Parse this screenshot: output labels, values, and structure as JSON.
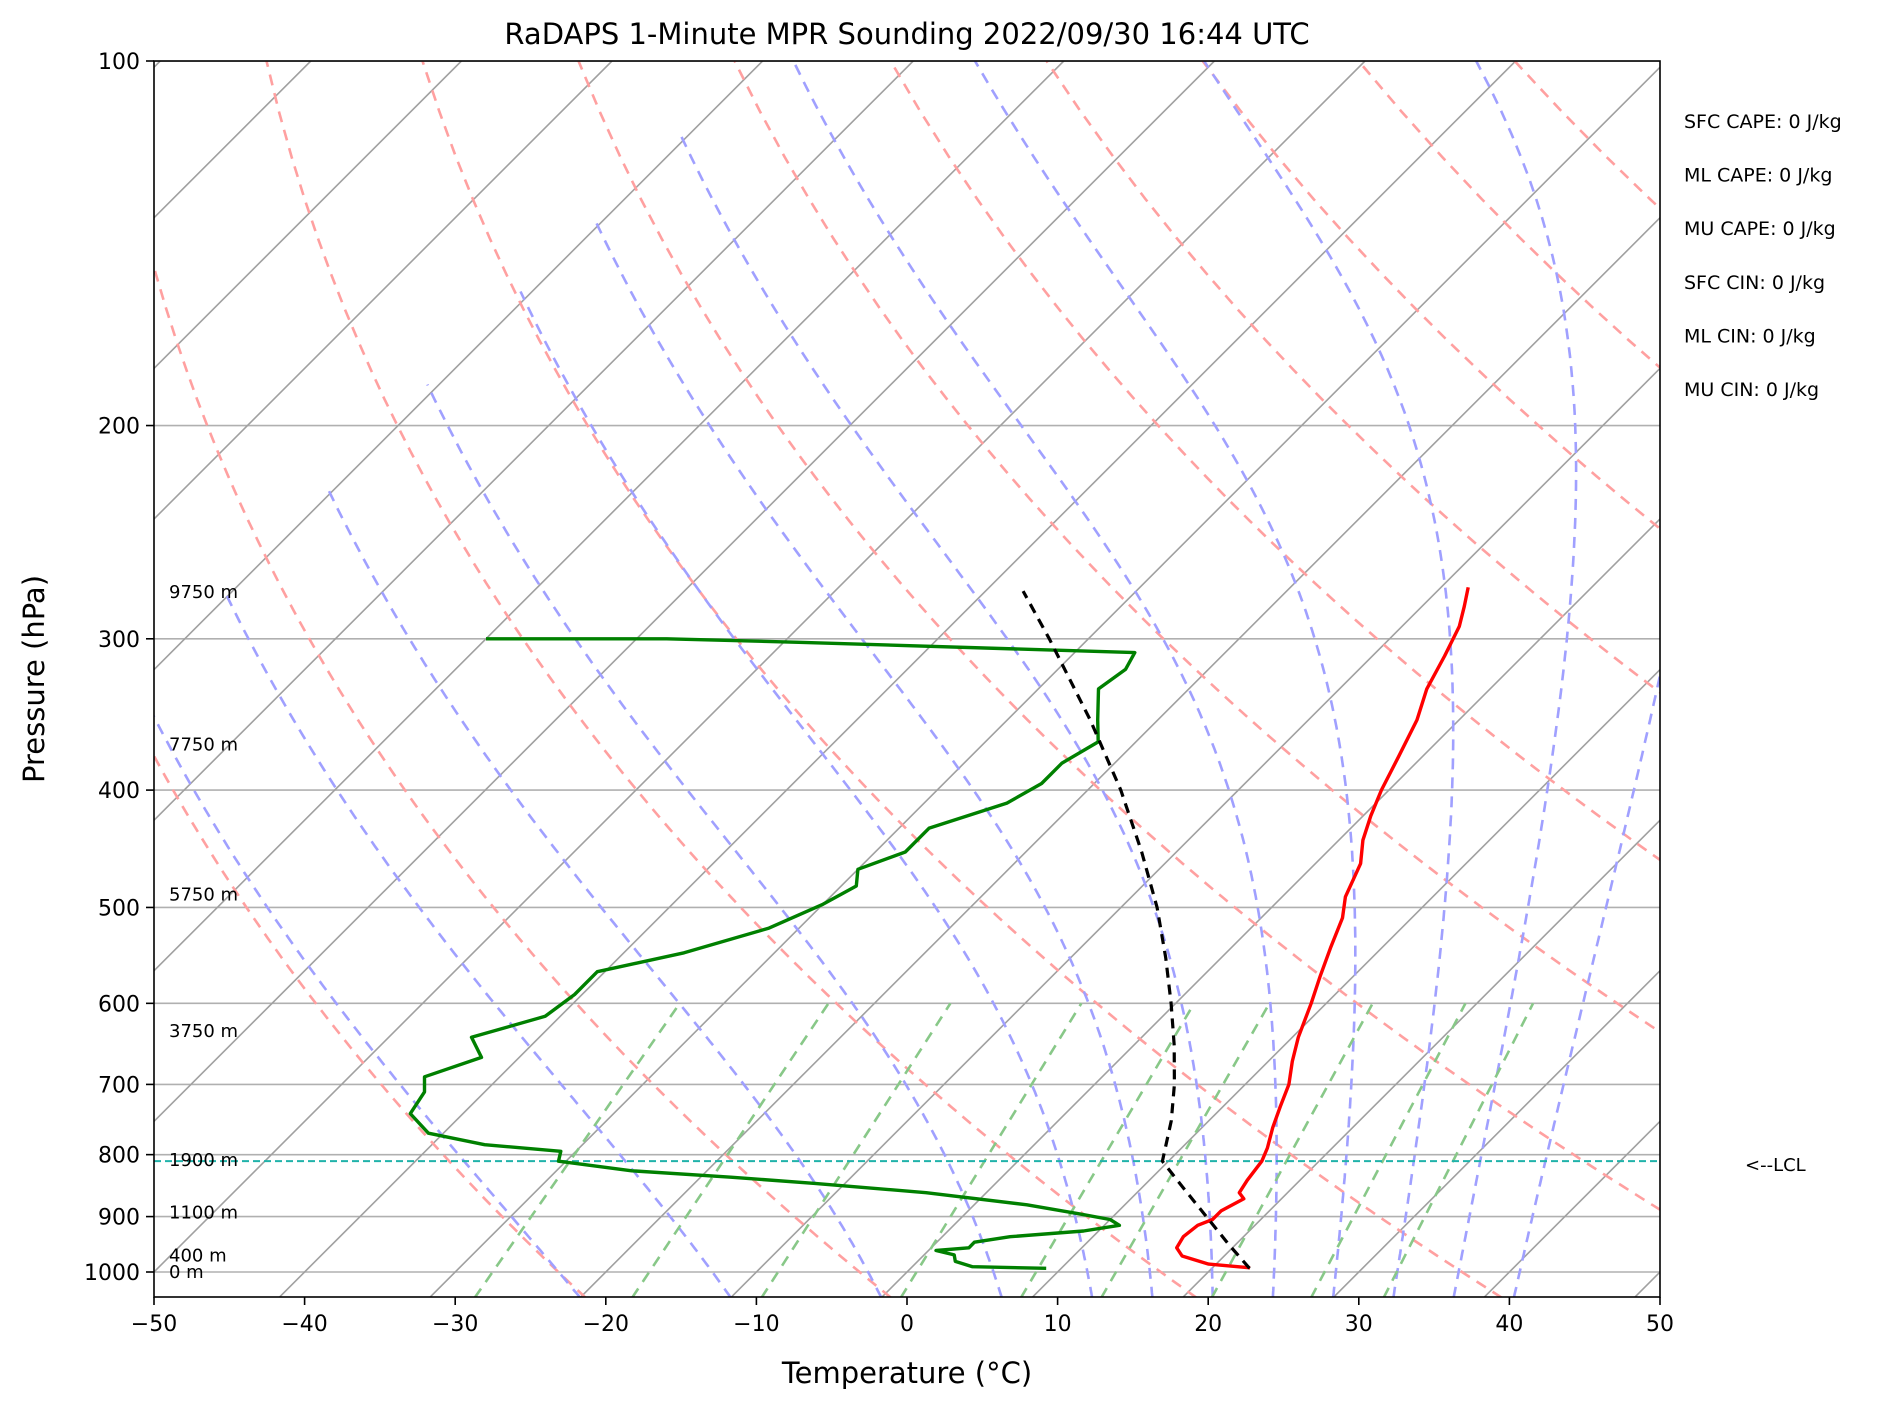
{
  "chart_data": {
    "type": "line",
    "title": "RaDAPS 1-Minute MPR Sounding 2022/09/30 16:44 UTC",
    "xlabel": "Temperature (°C)",
    "ylabel": "Pressure (hPa)",
    "xlim": [
      -50,
      50
    ],
    "ylim": [
      1050,
      100
    ],
    "y_scale": "log",
    "x_ticks": [
      -50,
      -40,
      -30,
      -20,
      -10,
      0,
      10,
      20,
      30,
      40,
      50
    ],
    "x_tick_labels": [
      "−50",
      "−40",
      "−30",
      "−20",
      "−10",
      "0",
      "10",
      "20",
      "30",
      "40",
      "50"
    ],
    "y_ticks": [
      100,
      200,
      300,
      400,
      500,
      600,
      700,
      800,
      900,
      1000
    ],
    "y_tick_labels": [
      "100",
      "200",
      "300",
      "400",
      "500",
      "600",
      "700",
      "800",
      "900",
      "1000"
    ],
    "grid": true,
    "skew": "skew-T",
    "series": [
      {
        "role": "temperature",
        "color": "#ff0000",
        "points": [
          [
            992,
            22.5
          ],
          [
            985,
            19.5
          ],
          [
            970,
            17.2
          ],
          [
            955,
            16.3
          ],
          [
            935,
            16.0
          ],
          [
            915,
            16.2
          ],
          [
            905,
            16.8
          ],
          [
            890,
            16.8
          ],
          [
            870,
            17.5
          ],
          [
            860,
            16.8
          ],
          [
            840,
            16.5
          ],
          [
            810,
            16.2
          ],
          [
            790,
            15.7
          ],
          [
            760,
            14.7
          ],
          [
            730,
            13.8
          ],
          [
            700,
            12.9
          ],
          [
            670,
            11.6
          ],
          [
            640,
            10.4
          ],
          [
            600,
            9.0
          ],
          [
            570,
            7.8
          ],
          [
            540,
            6.6
          ],
          [
            510,
            5.4
          ],
          [
            490,
            4.2
          ],
          [
            460,
            3.0
          ],
          [
            440,
            1.6
          ],
          [
            420,
            0.5
          ],
          [
            400,
            -0.5
          ],
          [
            375,
            -1.6
          ],
          [
            350,
            -2.8
          ],
          [
            330,
            -4.2
          ],
          [
            310,
            -5.2
          ],
          [
            293,
            -6.2
          ],
          [
            282,
            -7.2
          ],
          [
            272,
            -8.2
          ]
        ]
      },
      {
        "role": "dewpoint",
        "color": "#008000",
        "points": [
          [
            993,
            9.0
          ],
          [
            990,
            4.0
          ],
          [
            980,
            2.5
          ],
          [
            968,
            2.0
          ],
          [
            960,
            0.5
          ],
          [
            955,
            2.5
          ],
          [
            945,
            2.5
          ],
          [
            935,
            4.5
          ],
          [
            925,
            9.0
          ],
          [
            915,
            11.0
          ],
          [
            905,
            10.0
          ],
          [
            895,
            7.5
          ],
          [
            880,
            3.5
          ],
          [
            860,
            -4.0
          ],
          [
            845,
            -12.0
          ],
          [
            835,
            -18.0
          ],
          [
            825,
            -25.0
          ],
          [
            810,
            -30.5
          ],
          [
            795,
            -31.0
          ],
          [
            785,
            -36.5
          ],
          [
            768,
            -41.0
          ],
          [
            740,
            -43.5
          ],
          [
            710,
            -44.0
          ],
          [
            690,
            -45.0
          ],
          [
            665,
            -42.5
          ],
          [
            640,
            -44.5
          ],
          [
            615,
            -41.0
          ],
          [
            590,
            -40.5
          ],
          [
            565,
            -40.5
          ],
          [
            545,
            -36.0
          ],
          [
            520,
            -32.0
          ],
          [
            497,
            -30.0
          ],
          [
            480,
            -29.0
          ],
          [
            465,
            -30.0
          ],
          [
            450,
            -28.0
          ],
          [
            430,
            -28.0
          ],
          [
            410,
            -24.5
          ],
          [
            395,
            -23.5
          ],
          [
            380,
            -23.5
          ],
          [
            365,
            -22.5
          ],
          [
            350,
            -24.0
          ],
          [
            330,
            -26.0
          ],
          [
            318,
            -25.5
          ],
          [
            308,
            -26.0
          ],
          [
            302,
            -49.0
          ],
          [
            300,
            -58.0
          ],
          [
            300,
            -70.0
          ]
        ]
      },
      {
        "role": "parcel-path",
        "color": "#000000",
        "points": [
          [
            993,
            22.5
          ],
          [
            950,
            19.6
          ],
          [
            900,
            16.2
          ],
          [
            850,
            12.6
          ],
          [
            810,
            9.6
          ],
          [
            750,
            7.5
          ],
          [
            700,
            5.3
          ],
          [
            650,
            2.7
          ],
          [
            600,
            -0.3
          ],
          [
            550,
            -3.7
          ],
          [
            500,
            -7.6
          ],
          [
            450,
            -12.3
          ],
          [
            400,
            -17.8
          ],
          [
            350,
            -24.5
          ],
          [
            300,
            -32.6
          ],
          [
            274,
            -37.5
          ]
        ]
      }
    ],
    "dry_adiabat_thetas_k": [
      250,
      270,
      290,
      310,
      330,
      350,
      370,
      390,
      410,
      430,
      450,
      470,
      490,
      510,
      530
    ],
    "moist_adiabat_start_c": [
      -20,
      -10,
      0,
      8,
      14,
      18,
      22,
      26,
      30,
      34,
      38,
      42
    ],
    "mixing_ratio_g_per_kg": [
      0.4,
      1,
      2,
      4,
      7,
      10,
      16,
      24,
      32
    ],
    "lcl_pressure": 810,
    "height_labels": [
      {
        "text": "9750 m",
        "pressure": 274
      },
      {
        "text": "7750 m",
        "pressure": 366
      },
      {
        "text": "5750 m",
        "pressure": 487
      },
      {
        "text": "3750 m",
        "pressure": 631
      },
      {
        "text": "1900 m",
        "pressure": 807
      },
      {
        "text": "1100 m",
        "pressure": 891
      },
      {
        "text": "400 m",
        "pressure": 967
      },
      {
        "text": "0 m",
        "pressure": 998
      }
    ],
    "lcl_label": "<--LCL",
    "indices": [
      "SFC CAPE: 0 J/kg",
      "ML CAPE: 0 J/kg",
      "MU CAPE: 0 J/kg",
      "SFC CIN: 0 J/kg",
      "ML CIN: 0 J/kg",
      "MU CIN: 0 J/kg"
    ],
    "colors": {
      "isotherm": "#a0a0a0",
      "dry_adiabat": "#ffa0a0",
      "moist_adiabat": "#a0a0ff",
      "mixing_ratio": "#88c888",
      "lcl_line": "#20b2aa"
    }
  }
}
